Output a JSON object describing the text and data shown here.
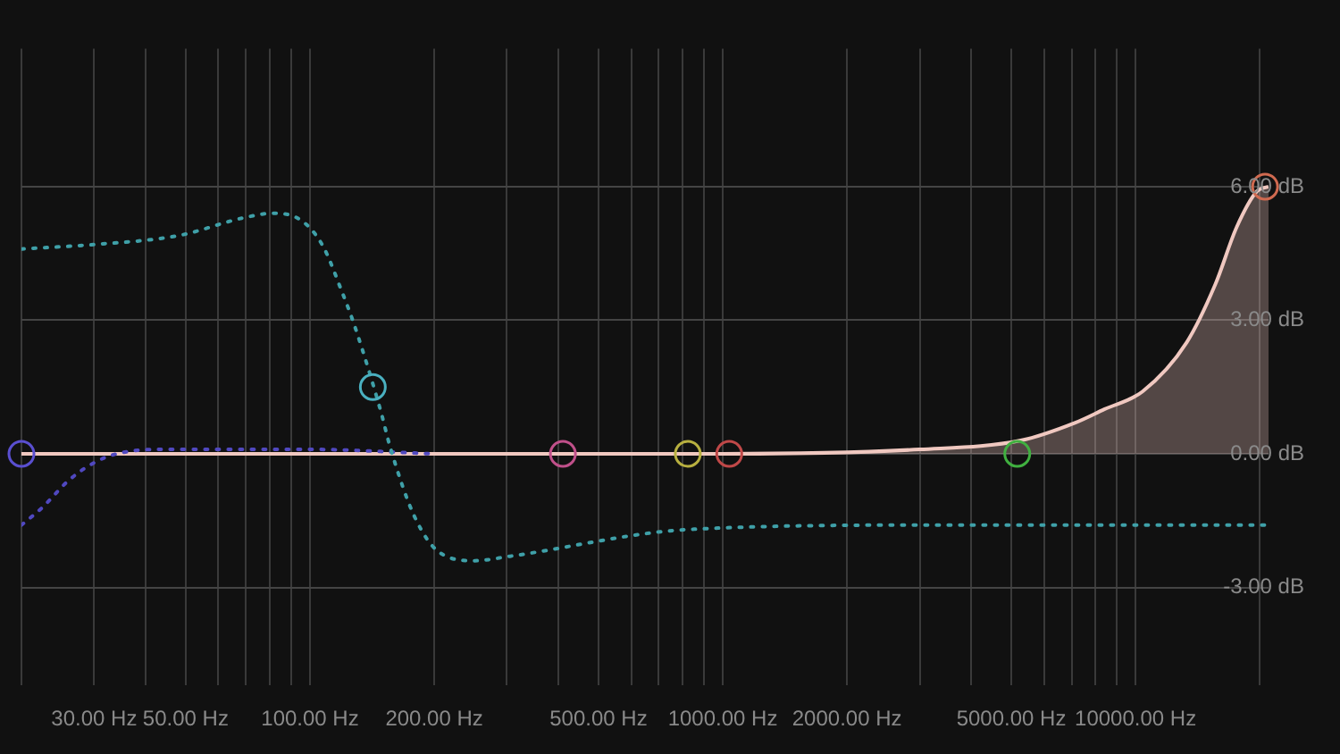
{
  "chart_data": {
    "type": "line",
    "log": "x",
    "grid": true,
    "legend": false,
    "xlim": [
      20,
      21000
    ],
    "ylim": [
      -5.2,
      9.1
    ],
    "xticks": [
      {
        "value": 20,
        "label": null
      },
      {
        "value": 30,
        "label": "30.00 Hz"
      },
      {
        "value": 40,
        "label": null
      },
      {
        "value": 50,
        "label": "50.00 Hz"
      },
      {
        "value": 60,
        "label": null
      },
      {
        "value": 70,
        "label": null
      },
      {
        "value": 80,
        "label": null
      },
      {
        "value": 90,
        "label": null
      },
      {
        "value": 100,
        "label": "100.00 Hz"
      },
      {
        "value": 200,
        "label": "200.00 Hz"
      },
      {
        "value": 300,
        "label": null
      },
      {
        "value": 400,
        "label": null
      },
      {
        "value": 500,
        "label": "500.00 Hz"
      },
      {
        "value": 600,
        "label": null
      },
      {
        "value": 700,
        "label": null
      },
      {
        "value": 800,
        "label": null
      },
      {
        "value": 900,
        "label": null
      },
      {
        "value": 1000,
        "label": "1000.00 Hz"
      },
      {
        "value": 2000,
        "label": "2000.00 Hz"
      },
      {
        "value": 3000,
        "label": null
      },
      {
        "value": 4000,
        "label": null
      },
      {
        "value": 5000,
        "label": "5000.00 Hz"
      },
      {
        "value": 6000,
        "label": null
      },
      {
        "value": 7000,
        "label": null
      },
      {
        "value": 8000,
        "label": null
      },
      {
        "value": 9000,
        "label": null
      },
      {
        "value": 10000,
        "label": "10000.00 Hz"
      },
      {
        "value": 20000,
        "label": null
      }
    ],
    "yticks": [
      {
        "value": -3,
        "label": "-3.00 dB"
      },
      {
        "value": 0,
        "label": "0.00 dB"
      },
      {
        "value": 3,
        "label": "3.00 dB"
      },
      {
        "value": 6,
        "label": "6.00 dB"
      }
    ],
    "series": [
      {
        "type": "line",
        "line_style": "dotted",
        "marker": "none",
        "color": "#3fa0a8",
        "x": [
          20,
          30,
          48,
          69,
          81,
          93,
          107,
          120,
          128,
          148,
          157,
          179,
          205,
          251,
          305,
          823,
          3310,
          21000
        ],
        "values": [
          4.6,
          4.7,
          4.9,
          5.3,
          5.4,
          5.3,
          4.7,
          3.6,
          2.9,
          1.0,
          0.1,
          -1.4,
          -2.2,
          -2.4,
          -2.3,
          -1.7,
          -1.6,
          -1.6
        ]
      },
      {
        "type": "line",
        "line_style": "dotted",
        "marker": "none",
        "color": "#5048c0",
        "x": [
          20,
          22.5,
          26,
          30,
          34,
          43,
          100,
          200
        ],
        "values": [
          -1.6,
          -1.2,
          -0.6,
          -0.2,
          0.0,
          0.1,
          0.1,
          0.0
        ]
      },
      {
        "type": "area",
        "line_style": "solid",
        "marker": "none",
        "color": "#f0c8c0",
        "x": [
          20,
          1000,
          3000,
          5270,
          7150,
          8400,
          10400,
          13300,
          15600,
          17600,
          19700,
          21000
        ],
        "values": [
          0,
          0,
          0.1,
          0.3,
          0.7,
          1.0,
          1.4,
          2.5,
          3.8,
          5.1,
          5.9,
          6.0
        ]
      },
      {
        "type": "scatter",
        "marker": "circle",
        "x": [
          20,
          142,
          410,
          823,
          1037,
          5170,
          20600
        ],
        "values": [
          0,
          1.5,
          0,
          0,
          0,
          0,
          6.0
        ],
        "colors": [
          "#5a4fd0",
          "#4ab0c0",
          "#c0508a",
          "#b8b040",
          "#c04848",
          "#40b040",
          "#d06a50"
        ]
      }
    ]
  }
}
